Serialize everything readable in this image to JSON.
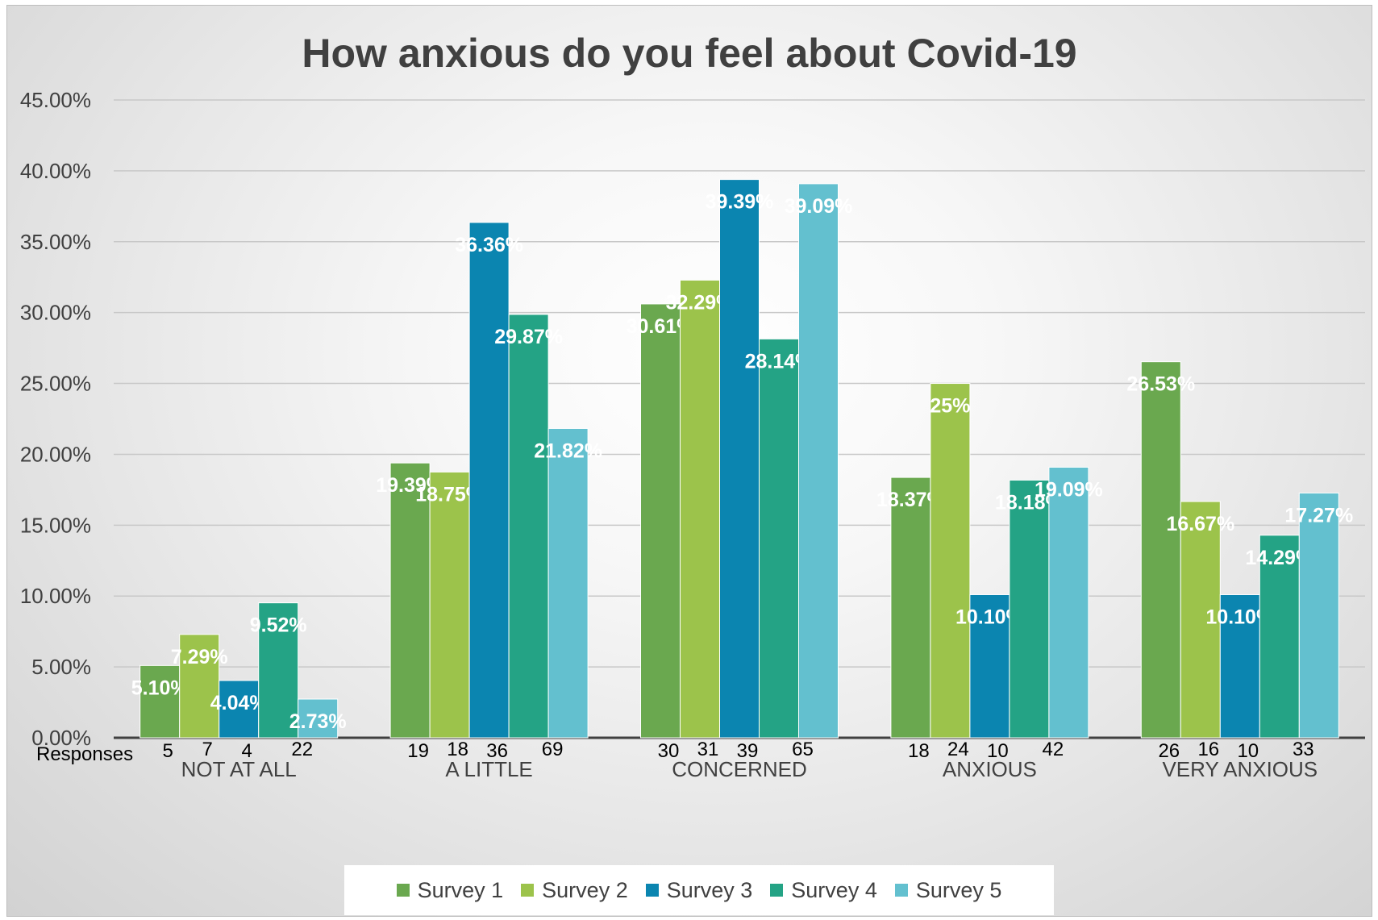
{
  "chart_data": {
    "type": "bar",
    "title": "How anxious do you feel about Covid-19",
    "categories": [
      "NOT AT ALL",
      "A LITTLE",
      "CONCERNED",
      "ANXIOUS",
      "VERY ANXIOUS"
    ],
    "ylim": [
      0,
      45
    ],
    "yticks": [
      "0.00%",
      "5.00%",
      "10.00%",
      "15.00%",
      "20.00%",
      "25.00%",
      "30.00%",
      "35.00%",
      "40.00%",
      "45.00%"
    ],
    "grid": true,
    "legend_position": "bottom",
    "responses_label": "Responses",
    "series": [
      {
        "name": "Survey 1",
        "color": "#6aa84f",
        "values": [
          5.1,
          19.39,
          30.61,
          18.37,
          26.53
        ],
        "labels": [
          "5.10%",
          "19.39%",
          "30.61%",
          "18.37%",
          "26.53%"
        ],
        "responses": [
          "5",
          "19",
          "30",
          "18",
          "26"
        ]
      },
      {
        "name": "Survey 2",
        "color": "#9cc34b",
        "values": [
          7.29,
          18.75,
          32.29,
          25,
          16.67
        ],
        "labels": [
          "7.29%",
          "18.75%",
          "32.29%",
          "25%",
          "16.67%"
        ],
        "responses": [
          "7",
          "18",
          "31",
          "24",
          "16"
        ]
      },
      {
        "name": "Survey 3",
        "color": "#0b85b0",
        "values": [
          4.04,
          36.36,
          39.39,
          10.1,
          10.1
        ],
        "labels": [
          "4.04%",
          "36.36%",
          "39.39%",
          "10.10%",
          "10.10%"
        ],
        "responses": [
          "4",
          "36",
          "39",
          "10",
          "10"
        ]
      },
      {
        "name": "Survey 4",
        "color": "#24a385",
        "values": [
          9.52,
          29.87,
          28.14,
          18.18,
          14.29
        ],
        "labels": [
          "9.52%",
          "29.87%",
          "28.14%",
          "18.18%",
          "14.29%"
        ],
        "responses": [
          "22",
          "69",
          "65",
          "42",
          "33"
        ]
      },
      {
        "name": "Survey 5",
        "color": "#63c0cf",
        "values": [
          2.73,
          21.82,
          39.09,
          19.09,
          17.27
        ],
        "labels": [
          "2.73%",
          "21.82%",
          "39.09%",
          "19.09%",
          "17.27%"
        ],
        "responses": [],
        "note": "last row of response counts under each group is shown at the survey-4/5 position"
      }
    ]
  }
}
